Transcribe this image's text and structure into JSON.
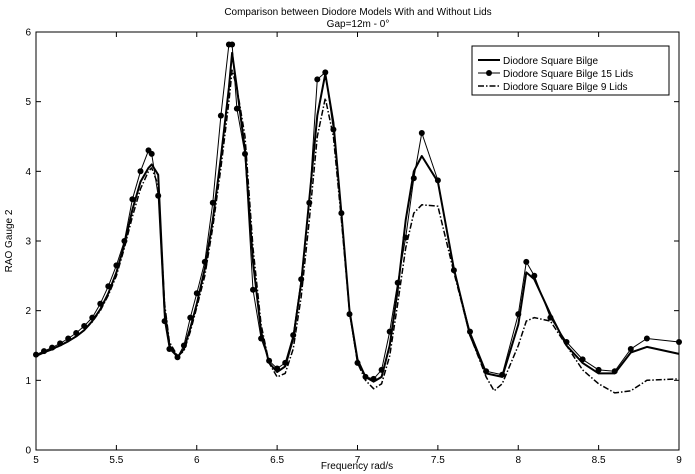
{
  "chart_data": {
    "type": "line",
    "title": "Comparison between Diodore Models With and Without Lids",
    "subtitle": "Gap=12m - 0°",
    "xlabel": "Frequency rad/s",
    "ylabel": "RAO Gauge 2",
    "xlim": [
      5,
      9
    ],
    "ylim": [
      0,
      6
    ],
    "xticks": [
      "5",
      "5.5",
      "6",
      "6.5",
      "7",
      "7.5",
      "8",
      "8.5",
      "9"
    ],
    "yticks": [
      "0",
      "1",
      "2",
      "3",
      "4",
      "5",
      "6"
    ],
    "grid": false,
    "legend_position": "top-right",
    "series": [
      {
        "name": "Diodore Square Bilge",
        "style": "solid-thick",
        "color": "#000000",
        "x": [
          5.0,
          5.05,
          5.1,
          5.15,
          5.2,
          5.25,
          5.3,
          5.35,
          5.4,
          5.45,
          5.5,
          5.55,
          5.6,
          5.65,
          5.7,
          5.72,
          5.76,
          5.8,
          5.83,
          5.88,
          5.92,
          5.96,
          6.0,
          6.05,
          6.1,
          6.15,
          6.2,
          6.22,
          6.25,
          6.3,
          6.35,
          6.4,
          6.45,
          6.5,
          6.55,
          6.6,
          6.65,
          6.7,
          6.75,
          6.8,
          6.85,
          6.9,
          6.95,
          7.0,
          7.05,
          7.1,
          7.15,
          7.2,
          7.25,
          7.3,
          7.35,
          7.4,
          7.5,
          7.6,
          7.7,
          7.8,
          7.9,
          8.0,
          8.05,
          8.1,
          8.2,
          8.3,
          8.4,
          8.5,
          8.6,
          8.7,
          8.8,
          9.0
        ],
        "y": [
          1.35,
          1.4,
          1.45,
          1.5,
          1.56,
          1.63,
          1.72,
          1.85,
          2.02,
          2.25,
          2.55,
          2.95,
          3.45,
          3.85,
          4.05,
          4.1,
          3.95,
          2.0,
          1.5,
          1.33,
          1.45,
          1.75,
          2.1,
          2.6,
          3.3,
          4.2,
          5.2,
          5.7,
          5.2,
          4.3,
          2.7,
          1.7,
          1.25,
          1.12,
          1.2,
          1.6,
          2.4,
          3.6,
          4.8,
          5.4,
          4.7,
          3.4,
          2.0,
          1.3,
          1.05,
          0.98,
          1.05,
          1.5,
          2.3,
          3.3,
          4.0,
          4.22,
          3.85,
          2.6,
          1.65,
          1.1,
          1.05,
          1.8,
          2.55,
          2.45,
          1.95,
          1.5,
          1.25,
          1.1,
          1.1,
          1.4,
          1.48,
          1.38
        ]
      },
      {
        "name": "Diodore Square Bilge 15 Lids",
        "style": "solid-thin-markers",
        "color": "#000000",
        "x": [
          5.0,
          5.05,
          5.1,
          5.15,
          5.2,
          5.25,
          5.3,
          5.35,
          5.4,
          5.45,
          5.5,
          5.55,
          5.6,
          5.65,
          5.7,
          5.72,
          5.76,
          5.8,
          5.83,
          5.88,
          5.92,
          5.96,
          6.0,
          6.05,
          6.1,
          6.15,
          6.2,
          6.22,
          6.25,
          6.3,
          6.35,
          6.4,
          6.45,
          6.5,
          6.55,
          6.6,
          6.65,
          6.7,
          6.75,
          6.8,
          6.85,
          6.9,
          6.95,
          7.0,
          7.05,
          7.1,
          7.15,
          7.2,
          7.25,
          7.3,
          7.35,
          7.4,
          7.5,
          7.6,
          7.7,
          7.8,
          7.9,
          8.0,
          8.05,
          8.1,
          8.2,
          8.3,
          8.4,
          8.5,
          8.6,
          8.7,
          8.8,
          9.0
        ],
        "y": [
          1.37,
          1.42,
          1.47,
          1.53,
          1.6,
          1.68,
          1.78,
          1.9,
          2.1,
          2.35,
          2.65,
          3.0,
          3.6,
          4.0,
          4.3,
          4.25,
          3.65,
          1.85,
          1.45,
          1.33,
          1.5,
          1.9,
          2.25,
          2.7,
          3.55,
          4.8,
          5.82,
          5.82,
          4.9,
          4.25,
          2.3,
          1.6,
          1.28,
          1.17,
          1.25,
          1.65,
          2.45,
          3.55,
          5.32,
          5.42,
          4.6,
          3.4,
          1.95,
          1.25,
          1.05,
          1.02,
          1.15,
          1.7,
          2.4,
          3.05,
          3.9,
          4.55,
          3.87,
          2.58,
          1.7,
          1.13,
          1.08,
          1.95,
          2.7,
          2.5,
          1.9,
          1.55,
          1.3,
          1.15,
          1.13,
          1.45,
          1.6,
          1.55
        ]
      },
      {
        "name": "Diodore Square Bilge 9 Lids",
        "style": "dash-dot",
        "color": "#000000",
        "x": [
          5.0,
          5.05,
          5.1,
          5.15,
          5.2,
          5.25,
          5.3,
          5.35,
          5.4,
          5.45,
          5.5,
          5.55,
          5.6,
          5.65,
          5.7,
          5.72,
          5.76,
          5.8,
          5.83,
          5.88,
          5.92,
          5.96,
          6.0,
          6.05,
          6.1,
          6.15,
          6.2,
          6.22,
          6.25,
          6.3,
          6.35,
          6.4,
          6.45,
          6.5,
          6.55,
          6.6,
          6.65,
          6.7,
          6.75,
          6.8,
          6.85,
          6.9,
          6.95,
          7.0,
          7.05,
          7.1,
          7.15,
          7.2,
          7.25,
          7.3,
          7.35,
          7.4,
          7.5,
          7.6,
          7.7,
          7.8,
          7.85,
          7.9,
          8.0,
          8.05,
          8.1,
          8.2,
          8.3,
          8.4,
          8.5,
          8.6,
          8.7,
          8.8,
          9.0
        ],
        "y": [
          1.35,
          1.4,
          1.44,
          1.5,
          1.56,
          1.63,
          1.72,
          1.84,
          2.0,
          2.22,
          2.5,
          2.9,
          3.35,
          3.75,
          4.0,
          4.05,
          3.8,
          2.1,
          1.55,
          1.35,
          1.42,
          1.7,
          2.05,
          2.5,
          3.2,
          4.05,
          5.0,
          5.45,
          5.2,
          4.5,
          2.9,
          1.8,
          1.25,
          1.05,
          1.1,
          1.45,
          2.2,
          3.3,
          4.5,
          5.05,
          4.5,
          3.3,
          2.0,
          1.25,
          1.0,
          0.88,
          0.95,
          1.35,
          2.1,
          2.9,
          3.4,
          3.52,
          3.5,
          2.55,
          1.65,
          1.05,
          0.85,
          0.95,
          1.5,
          1.85,
          1.9,
          1.85,
          1.5,
          1.15,
          0.95,
          0.82,
          0.85,
          1.0,
          1.02
        ]
      }
    ]
  }
}
